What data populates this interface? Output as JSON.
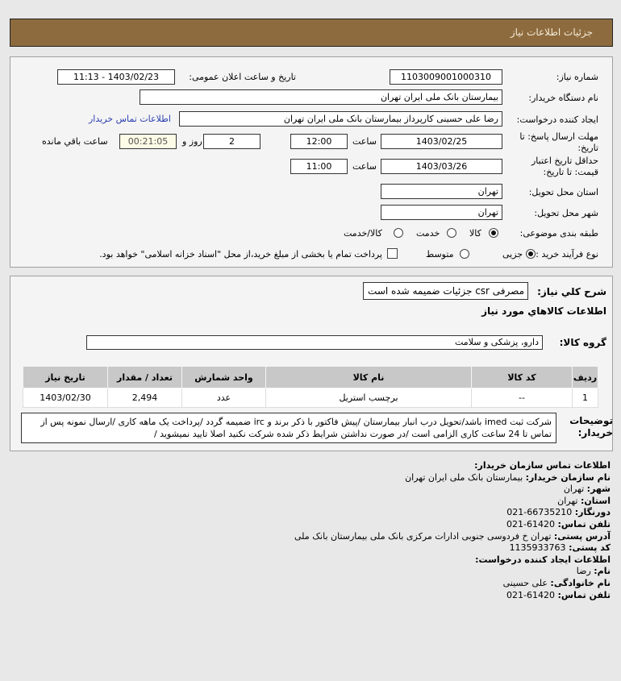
{
  "header": {
    "title": "جزئیات اطلاعات نیاز"
  },
  "form": {
    "need_number_label": "شماره نیاز:",
    "need_number": "1103009001000310",
    "announce_label": "تاریخ و ساعت اعلان عمومی:",
    "announce_value": "1403/02/23 - 11:13",
    "buyer_label": "نام دستگاه خریدار:",
    "buyer_value": "بیمارستان بانک ملی ایران تهران",
    "requester_label": "ایجاد کننده درخواست:",
    "requester_value": "رضا علی حسینی کارپرداز بیمارستان بانک ملی ایران تهران",
    "contact_link": "اطلاعات تماس خریدار",
    "deadline_label": "مهلت ارسال پاسخ: تا تاریخ:",
    "deadline_date": "1403/02/25",
    "time_label": "ساعت",
    "deadline_time": "12:00",
    "days": "2",
    "days_label": "روز و",
    "remaining": "00:21:05",
    "remaining_label": "ساعت باقي مانده",
    "validity_label": "حداقل تاریخ اعتبار قیمت: تا تاریخ:",
    "validity_date": "1403/03/26",
    "validity_time": "11:00",
    "province_label": "استان محل تحویل:",
    "province_value": "تهران",
    "city_label": "شهر محل تحویل:",
    "city_value": "تهران",
    "category_label": "طبقه بندی موضوعی:",
    "category_options": [
      "کالا",
      "خدمت",
      "کالا/خدمت"
    ],
    "category_selected": "کالا",
    "process_label": "نوع فرآیند خرید :",
    "process_options": [
      "جزیی",
      "متوسط"
    ],
    "process_selected": "جزیی",
    "payment_note": "پرداخت تمام یا بخشی از مبلغ خرید،از محل \"اسناد خزانه اسلامی\" خواهد بود."
  },
  "details": {
    "summary_label": "شرح کلي نياز:",
    "summary_value": "مصرفی csr جزئیات ضمیمه شده است",
    "goods_heading": "اطلاعات کالاهاي مورد نياز",
    "group_label": "گروه کالا:",
    "group_value": "دارو، پزشکی و سلامت",
    "table": {
      "headers": [
        "ردیف",
        "کد کالا",
        "نام کالا",
        "واحد شمارش",
        "تعداد / مقدار",
        "تاریخ نیاز"
      ],
      "rows": [
        [
          "1",
          "--",
          "برچسب استریل",
          "عدد",
          "2,494",
          "1403/02/30"
        ]
      ]
    },
    "desc_label": "توضیحات خریدار:",
    "desc_value": "شرکت ثبت imed باشد/تحویل درب انبار بیمارستان /پیش فاکتور با ذکر برند و irc ضمیمه گردد /پرداخت یک ماهه کاری /ارسال نمونه پس از تماس تا 24 ساعت کاری الزامی است /در صورت نداشتن شرایط ذکر شده شرکت نکنید اصلا تایید نمیشوید /"
  },
  "contact": {
    "heading": "اطلاعات تماس سازمان خریدار:",
    "items": [
      {
        "k": "نام سازمان خریدار:",
        "v": "بیمارستان بانک ملی ایران تهران"
      },
      {
        "k": "شهر:",
        "v": "تهران"
      },
      {
        "k": "استان:",
        "v": "تهران"
      },
      {
        "k": "دورنگار:",
        "v": "66735210-021"
      },
      {
        "k": "تلفن تماس:",
        "v": "61420-021"
      },
      {
        "k": "آدرس پستی:",
        "v": "تهران خ فردوسی جنوبی ادارات مرکزی بانک ملی بیمارستان بانک ملی"
      },
      {
        "k": "کد پستی:",
        "v": "1135933763"
      }
    ],
    "creator_heading": "اطلاعات ایجاد کننده درخواست:",
    "creator": [
      {
        "k": "نام:",
        "v": "رضا"
      },
      {
        "k": "نام خانوادگی:",
        "v": "علی حسینی"
      },
      {
        "k": "تلفن تماس:",
        "v": "61420-021"
      }
    ]
  }
}
